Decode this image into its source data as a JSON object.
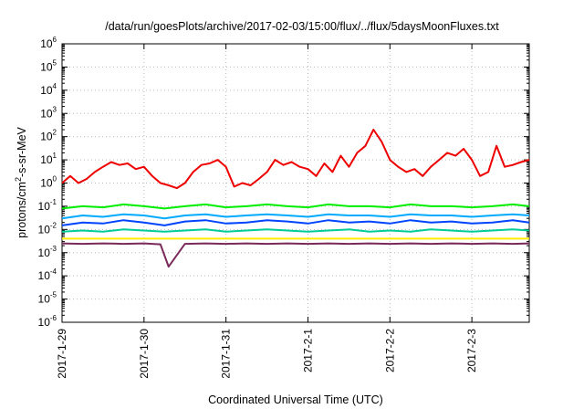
{
  "chart_data": {
    "type": "line",
    "title": "/data/run/goesPlots/archive/2017-02-03/15:00/flux/../flux/5daysMoonFluxes.txt",
    "xlabel": "Coordinated Universal Time (UTC)",
    "ylabel": {
      "base": "protons/cm",
      "sup": "2",
      "rest": "-s-sr-MeV"
    },
    "yscale": "log",
    "ylim": [
      1e-06,
      1000000.0
    ],
    "xlim": [
      0,
      5.7
    ],
    "x_unit": "days since 2017-1-29 00:00 UTC",
    "grid": true,
    "legend": "none",
    "x_ticks": [
      {
        "value": 0,
        "label": "2017-1-29"
      },
      {
        "value": 1,
        "label": "2017-1-30"
      },
      {
        "value": 2,
        "label": "2017-1-31"
      },
      {
        "value": 3,
        "label": "2017-2-1"
      },
      {
        "value": 4,
        "label": "2017-2-2"
      },
      {
        "value": 5,
        "label": "2017-2-3"
      }
    ],
    "y_ticks": [
      {
        "value": 1e-06,
        "base": "10",
        "exp": "-6"
      },
      {
        "value": 1e-05,
        "base": "10",
        "exp": "-5"
      },
      {
        "value": 0.0001,
        "base": "10",
        "exp": "-4"
      },
      {
        "value": 0.001,
        "base": "10",
        "exp": "-3"
      },
      {
        "value": 0.01,
        "base": "10",
        "exp": "-2"
      },
      {
        "value": 0.1,
        "base": "10",
        "exp": "-1"
      },
      {
        "value": 1,
        "base": "10",
        "exp": "0"
      },
      {
        "value": 10,
        "base": "10",
        "exp": "1"
      },
      {
        "value": 100,
        "base": "10",
        "exp": "2"
      },
      {
        "value": 1000,
        "base": "10",
        "exp": "3"
      },
      {
        "value": 10000,
        "base": "10",
        "exp": "4"
      },
      {
        "value": 100000,
        "base": "10",
        "exp": "5"
      },
      {
        "value": 1000000,
        "base": "10",
        "exp": "6"
      }
    ],
    "series": [
      {
        "color": "#7a2a5a",
        "x": [
          0,
          0.25,
          0.5,
          0.75,
          1,
          1.2,
          1.3,
          1.5,
          1.75,
          2,
          2.25,
          2.5,
          2.75,
          3,
          3.25,
          3.5,
          3.75,
          4,
          4.25,
          4.5,
          4.75,
          5,
          5.25,
          5.5,
          5.7
        ],
        "y": [
          0.0025,
          0.0024,
          0.0025,
          0.0024,
          0.0025,
          0.0023,
          0.00025,
          0.0024,
          0.0025,
          0.0024,
          0.0025,
          0.0024,
          0.0025,
          0.0024,
          0.0025,
          0.0024,
          0.0025,
          0.0024,
          0.0025,
          0.0024,
          0.0025,
          0.0024,
          0.0025,
          0.0024,
          0.0025
        ]
      },
      {
        "color": "#ffee00",
        "x": [
          0,
          0.5,
          1,
          1.5,
          2,
          2.5,
          3,
          3.5,
          4,
          4.5,
          5,
          5.5,
          5.7
        ],
        "y": [
          0.004,
          0.004,
          0.004,
          0.004,
          0.004,
          0.004,
          0.004,
          0.004,
          0.004,
          0.004,
          0.004,
          0.004,
          0.004
        ]
      },
      {
        "color": "#00cc99",
        "x": [
          0,
          0.25,
          0.5,
          0.75,
          1,
          1.25,
          1.5,
          1.75,
          2,
          2.25,
          2.5,
          2.75,
          3,
          3.25,
          3.5,
          3.75,
          4,
          4.25,
          4.5,
          4.75,
          5,
          5.25,
          5.5,
          5.7
        ],
        "y": [
          0.008,
          0.009,
          0.008,
          0.01,
          0.009,
          0.008,
          0.009,
          0.01,
          0.008,
          0.009,
          0.01,
          0.009,
          0.008,
          0.009,
          0.01,
          0.008,
          0.009,
          0.008,
          0.01,
          0.009,
          0.008,
          0.009,
          0.01,
          0.009
        ]
      },
      {
        "color": "#0044ff",
        "x": [
          0,
          0.25,
          0.5,
          0.75,
          1,
          1.25,
          1.5,
          1.75,
          2,
          2.25,
          2.5,
          2.75,
          3,
          3.25,
          3.5,
          3.75,
          4,
          4.25,
          4.5,
          4.75,
          5,
          5.25,
          5.5,
          5.7
        ],
        "y": [
          0.015,
          0.02,
          0.018,
          0.025,
          0.02,
          0.015,
          0.022,
          0.025,
          0.018,
          0.02,
          0.025,
          0.022,
          0.018,
          0.025,
          0.02,
          0.022,
          0.018,
          0.025,
          0.02,
          0.022,
          0.018,
          0.02,
          0.025,
          0.02
        ]
      },
      {
        "color": "#00aaff",
        "x": [
          0,
          0.25,
          0.5,
          0.75,
          1,
          1.25,
          1.5,
          1.75,
          2,
          2.25,
          2.5,
          2.75,
          3,
          3.25,
          3.5,
          3.75,
          4,
          4.25,
          4.5,
          4.75,
          5,
          5.25,
          5.5,
          5.7
        ],
        "y": [
          0.03,
          0.04,
          0.035,
          0.045,
          0.04,
          0.03,
          0.04,
          0.045,
          0.035,
          0.04,
          0.045,
          0.04,
          0.035,
          0.045,
          0.04,
          0.04,
          0.035,
          0.045,
          0.04,
          0.04,
          0.035,
          0.04,
          0.045,
          0.04
        ]
      },
      {
        "color": "#00ee00",
        "x": [
          0,
          0.25,
          0.5,
          0.75,
          1,
          1.25,
          1.5,
          1.75,
          2,
          2.25,
          2.5,
          2.75,
          3,
          3.25,
          3.5,
          3.75,
          4,
          4.25,
          4.5,
          4.75,
          5,
          5.25,
          5.5,
          5.7
        ],
        "y": [
          0.08,
          0.1,
          0.09,
          0.12,
          0.1,
          0.08,
          0.1,
          0.12,
          0.09,
          0.1,
          0.12,
          0.1,
          0.09,
          0.12,
          0.1,
          0.1,
          0.09,
          0.12,
          0.1,
          0.1,
          0.09,
          0.1,
          0.12,
          0.1
        ]
      },
      {
        "color": "#ee0000",
        "x": [
          0,
          0.1,
          0.2,
          0.3,
          0.4,
          0.5,
          0.6,
          0.7,
          0.8,
          0.9,
          1,
          1.1,
          1.2,
          1.3,
          1.4,
          1.5,
          1.6,
          1.7,
          1.8,
          1.9,
          2,
          2.1,
          2.2,
          2.3,
          2.4,
          2.5,
          2.6,
          2.7,
          2.8,
          2.9,
          3,
          3.1,
          3.2,
          3.3,
          3.4,
          3.5,
          3.6,
          3.7,
          3.8,
          3.9,
          4,
          4.1,
          4.2,
          4.3,
          4.4,
          4.5,
          4.6,
          4.7,
          4.8,
          4.9,
          5,
          5.1,
          5.2,
          5.3,
          5.4,
          5.5,
          5.6,
          5.7
        ],
        "y": [
          1,
          2,
          1,
          1.5,
          3,
          5,
          8,
          6,
          7,
          4,
          5,
          2,
          1,
          0.8,
          0.6,
          1,
          3,
          6,
          7,
          10,
          5,
          0.7,
          1,
          0.8,
          1.5,
          3,
          10,
          6,
          8,
          5,
          4,
          2,
          7,
          3,
          15,
          5,
          20,
          40,
          200,
          60,
          10,
          5,
          3,
          4,
          2,
          5,
          10,
          20,
          15,
          30,
          10,
          2,
          3,
          40,
          5,
          6,
          8,
          10
        ]
      }
    ]
  }
}
